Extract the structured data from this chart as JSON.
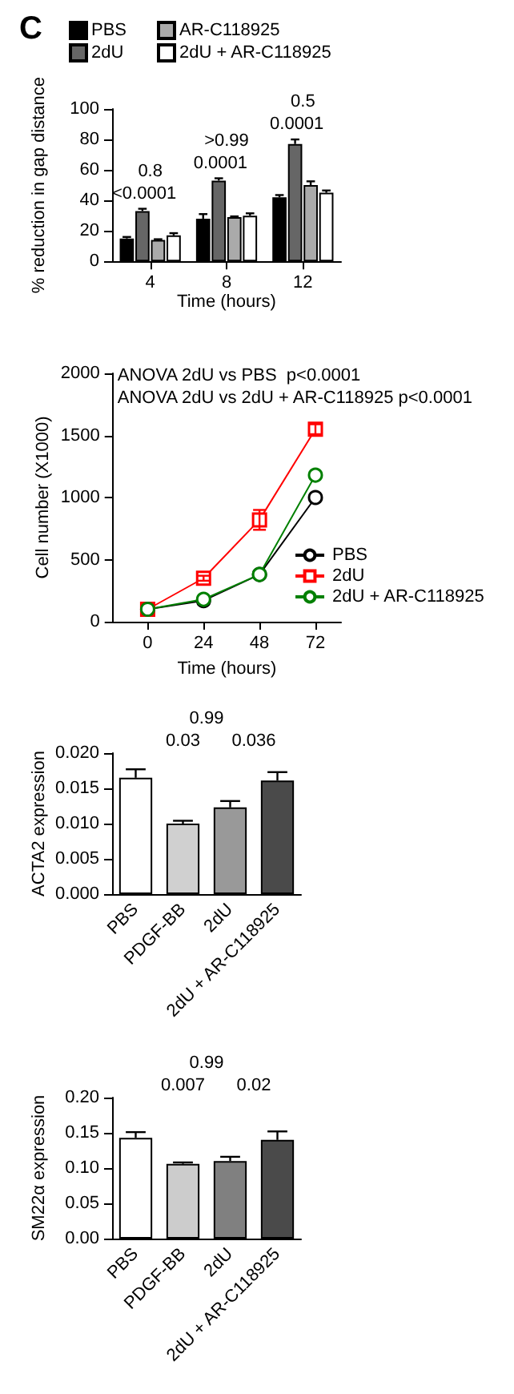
{
  "chart_data": [
    {
      "type": "bar",
      "categories": [
        "4",
        "8",
        "12"
      ],
      "xlabel": "Time (hours)",
      "ylabel": "% reduction in gap distance",
      "ylim": [
        0,
        100
      ],
      "yticks": [
        0,
        20,
        40,
        60,
        80,
        100
      ],
      "grid": false,
      "legend": "top left",
      "series": [
        {
          "name": "PBS",
          "color": "#000000",
          "values": [
            15,
            28,
            42
          ],
          "errors": [
            1,
            3,
            1.5
          ]
        },
        {
          "name": "2dU",
          "color": "#666666",
          "values": [
            33,
            53,
            77
          ],
          "errors": [
            1.5,
            1.5,
            3
          ]
        },
        {
          "name": "AR-C118925",
          "color": "#aaaaaa",
          "values": [
            14,
            29,
            50
          ],
          "errors": [
            0.5,
            0.5,
            2.5
          ]
        },
        {
          "name": "2dU + AR-C118925",
          "color": "#ffffff",
          "values": [
            17,
            30,
            45
          ],
          "errors": [
            1.5,
            1.5,
            1.5
          ]
        }
      ],
      "annotations": [
        "C",
        "0.8",
        "<0.0001",
        ">0.99",
        "0.0001",
        "0.5",
        "0.0001"
      ]
    },
    {
      "type": "line",
      "x": [
        0,
        24,
        48,
        72
      ],
      "xlabel": "Time (hours)",
      "ylabel": "Cell number (X1000)",
      "xlim": [
        -15,
        83
      ],
      "xticks": [
        0,
        24,
        48,
        72
      ],
      "ylim": [
        0,
        2000
      ],
      "yticks": [
        0,
        500,
        1000,
        1500,
        2000
      ],
      "grid": false,
      "legend": "bottom right",
      "line_style": "solid",
      "series": [
        {
          "name": "PBS",
          "color": "#000000",
          "marker": "circle",
          "values": [
            100,
            170,
            380,
            1000
          ]
        },
        {
          "name": "2dU",
          "color": "#ff0000",
          "marker": "square",
          "values": [
            100,
            350,
            820,
            1550
          ],
          "errors": [
            null,
            20,
            80,
            40
          ]
        },
        {
          "name": "2dU + AR-C118925",
          "color": "#008000",
          "marker": "circle",
          "values": [
            100,
            180,
            380,
            1180
          ]
        }
      ],
      "annotations": [
        "ANOVA 2dU vs PBS  p<0.0001",
        "ANOVA 2dU vs 2dU + AR-C118925 p<0.0001"
      ]
    },
    {
      "type": "bar",
      "categories": [
        "PBS",
        "PDGF-BB",
        "2dU",
        "2dU + AR-C118925"
      ],
      "ylabel": "ACTA2 expression",
      "ylim": [
        0,
        0.02
      ],
      "yticks": [
        {
          "value": 0,
          "label": "0.000"
        },
        0.005,
        {
          "value": 0.01,
          "label": "0.010"
        },
        0.015,
        {
          "value": 0.02,
          "label": "0.020"
        }
      ],
      "grid": false,
      "values": [
        0.0165,
        0.01,
        0.0123,
        0.0161
      ],
      "errors": [
        0.0012,
        0.0004,
        0.0009,
        0.0012
      ],
      "colors": [
        "#ffffff",
        "#d0d0d0",
        "#999999",
        "#4a4a4a"
      ],
      "annotations": [
        "0.99",
        "0.03",
        "0.036"
      ]
    },
    {
      "type": "bar",
      "categories": [
        "PBS",
        "PDGF-BB",
        "2dU",
        "2dU + AR-C118925"
      ],
      "ylabel": "SM22α expression",
      "ylim": [
        0,
        0.2
      ],
      "yticks": [
        {
          "value": 0,
          "label": "0.00"
        },
        0.05,
        {
          "value": 0.1,
          "label": "0.10"
        },
        0.15,
        {
          "value": 0.2,
          "label": "0.20"
        }
      ],
      "grid": false,
      "values": [
        0.143,
        0.106,
        0.11,
        0.14
      ],
      "errors": [
        0.008,
        0.002,
        0.006,
        0.012
      ],
      "colors": [
        "#ffffff",
        "#cccccc",
        "#808080",
        "#4a4a4a"
      ],
      "annotations": [
        "0.99",
        "0.007",
        "0.02"
      ]
    }
  ]
}
